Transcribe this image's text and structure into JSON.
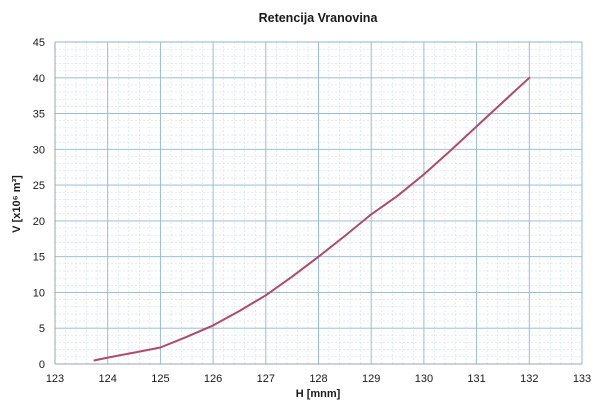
{
  "chart_data": {
    "type": "line",
    "title": "Retencija Vranovina",
    "xlabel": "H [mnm]",
    "ylabel": "V [x10⁶ m³]",
    "xlim": [
      123,
      133
    ],
    "ylim": [
      0,
      45
    ],
    "x_ticks": [
      "123",
      "124",
      "125",
      "126",
      "127",
      "128",
      "129",
      "130",
      "131",
      "132",
      "133"
    ],
    "y_ticks": [
      "0",
      "5",
      "10",
      "15",
      "20",
      "25",
      "30",
      "35",
      "40",
      "45"
    ],
    "x_minor_step": 0.2,
    "y_minor_step": 1,
    "grid": true,
    "legend": "none",
    "series": [
      {
        "color": "#b04a6a",
        "x": [
          123.75,
          124.0,
          124.5,
          125.0,
          125.5,
          126.0,
          126.5,
          127.0,
          127.5,
          128.0,
          128.5,
          129.0,
          129.5,
          130.0,
          130.5,
          131.0,
          131.5,
          132.0
        ],
        "y": [
          0.5,
          0.9,
          1.6,
          2.3,
          3.8,
          5.4,
          7.4,
          9.6,
          12.2,
          15.0,
          17.9,
          20.9,
          23.5,
          26.5,
          29.8,
          33.2,
          36.6,
          40.0
        ]
      }
    ]
  },
  "colors": {
    "major_grid": "#8fb6d8",
    "minor_grid": "#cfe0ef",
    "axis": "#9aa4ad"
  }
}
